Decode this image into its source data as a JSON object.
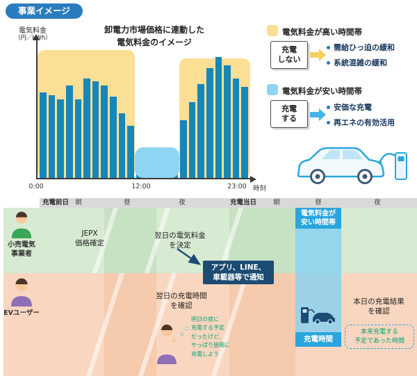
{
  "title_badge": "事業イメージ",
  "chart": {
    "title": "卸電力市場価格に連動した\n電気料金のイメージ",
    "y_label_main": "電気料金",
    "y_label_unit": "（円／kWh）",
    "x_label": "時刻",
    "ticks": [
      "0:00",
      "12:00",
      "23:00"
    ]
  },
  "chart_data": {
    "type": "bar",
    "title": "卸電力市場価格に連動した電気料金のイメージ",
    "xlabel": "時刻",
    "ylabel": "電気料金（円／kWh）",
    "x": [
      0,
      1,
      2,
      3,
      4,
      5,
      6,
      7,
      8,
      9,
      10,
      11,
      12,
      13,
      14,
      15,
      16,
      17,
      18,
      19,
      20,
      21,
      22,
      23
    ],
    "values": [
      62,
      60,
      57,
      67,
      57,
      72,
      70,
      67,
      59,
      47,
      38,
      14,
      13,
      12,
      13,
      14,
      42,
      55,
      68,
      80,
      88,
      82,
      72,
      66
    ],
    "ylim": [
      0,
      100
    ],
    "x_tick_labels": [
      "0:00",
      "12:00",
      "23:00"
    ],
    "highlight_bands": [
      {
        "name": "high-price-band-morning",
        "label": "電気料金が高い時間帯",
        "hours": [
          0,
          10
        ],
        "color": "#fbdf95"
      },
      {
        "name": "low-price-band-midday",
        "label": "電気料金が安い時間帯",
        "hours": [
          11,
          15
        ],
        "color": "#8ed5f4"
      },
      {
        "name": "high-price-band-evening",
        "label": "電気料金が高い時間帯",
        "hours": [
          16,
          23
        ],
        "color": "#fbdf95"
      }
    ]
  },
  "legend_high": {
    "title": "電気料金が高い時間帯",
    "action": "充電\nしない",
    "effects": [
      "需給ひっ迫の緩和",
      "系統混雑の緩和"
    ]
  },
  "legend_low": {
    "title": "電気料金が安い時間帯",
    "action": "充電\nする",
    "effects": [
      "安価な充電",
      "再エネの有効活用"
    ]
  },
  "timeline": {
    "header": [
      "充電前日",
      "朝",
      "昼",
      "夜",
      "充電当日",
      "朝",
      "昼",
      "夜"
    ],
    "row1_label": "小売電気\n事業者",
    "row2_label": "EVユーザー",
    "jepx": "JEPX\n価格確定",
    "decide": "翌日の電気料金\nを決定",
    "notify": "アプリ、LINE、\n車載器等で通知",
    "cheap_band": "電気料金が\n安い時間帯",
    "confirm": "翌日の充電時間\nを確認",
    "thought": "明日の夜に\n充電する予定\nだったけど、\nやっぱり昼間に\n充電しよう",
    "charge_time": "充電時間",
    "result": "本日の充電結果\nを確認",
    "original_plan": "本来充電する\n予定であった時間"
  },
  "colors": {
    "badge_bg": "#2b7cbf",
    "bar": "#1786b8",
    "high_band": "#fbdf95",
    "low_band": "#8ed5f4",
    "navy": "#1c4b74",
    "blue_accent": "#2aa5de",
    "green_row": "#d7ebd3",
    "orange_row": "#f9d6bf",
    "green_text": "#00a273"
  }
}
